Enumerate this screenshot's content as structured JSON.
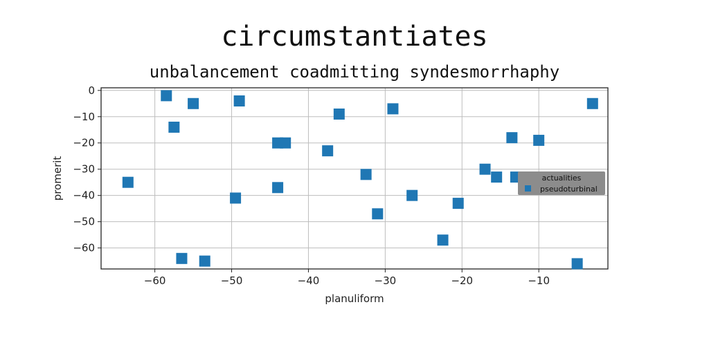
{
  "chart_data": {
    "type": "scatter",
    "title": "circumstantiates",
    "subtitle": "unbalancement coadmitting syndesmorrhaphy",
    "xlabel": "planuliform",
    "ylabel": "promerit",
    "xlim": [
      -67,
      -1
    ],
    "ylim": [
      -68,
      1
    ],
    "xticks": [
      -60,
      -50,
      -40,
      -30,
      -20,
      -10
    ],
    "yticks": [
      0,
      -10,
      -20,
      -30,
      -40,
      -50,
      -60
    ],
    "tick_labels_x": [
      "−60",
      "−50",
      "−40",
      "−30",
      "−20",
      "−10"
    ],
    "tick_labels_y": [
      "0",
      "−10",
      "−20",
      "−30",
      "−40",
      "−50",
      "−60"
    ],
    "grid": true,
    "legend": {
      "title": "actualities",
      "placement": "right"
    },
    "marker": "square",
    "series": [
      {
        "name": "pseudoturbinal",
        "color": "#1f77b4",
        "points": [
          [
            -58.5,
            -2
          ],
          [
            -55,
            -5
          ],
          [
            -49,
            -4
          ],
          [
            -57.5,
            -14
          ],
          [
            -36,
            -9
          ],
          [
            -29,
            -7
          ],
          [
            -3,
            -5
          ],
          [
            -44,
            -20
          ],
          [
            -43,
            -20
          ],
          [
            -37.5,
            -23
          ],
          [
            -13.5,
            -18
          ],
          [
            -10,
            -19
          ],
          [
            -63.5,
            -35
          ],
          [
            -44,
            -37
          ],
          [
            -49.5,
            -41
          ],
          [
            -32.5,
            -32
          ],
          [
            -17,
            -30
          ],
          [
            -15.5,
            -33
          ],
          [
            -13,
            -33
          ],
          [
            -26.5,
            -40
          ],
          [
            -20.5,
            -43
          ],
          [
            -31,
            -47
          ],
          [
            -22.5,
            -57
          ],
          [
            -56.5,
            -64
          ],
          [
            -53.5,
            -65
          ],
          [
            -5,
            -66
          ]
        ]
      }
    ]
  }
}
